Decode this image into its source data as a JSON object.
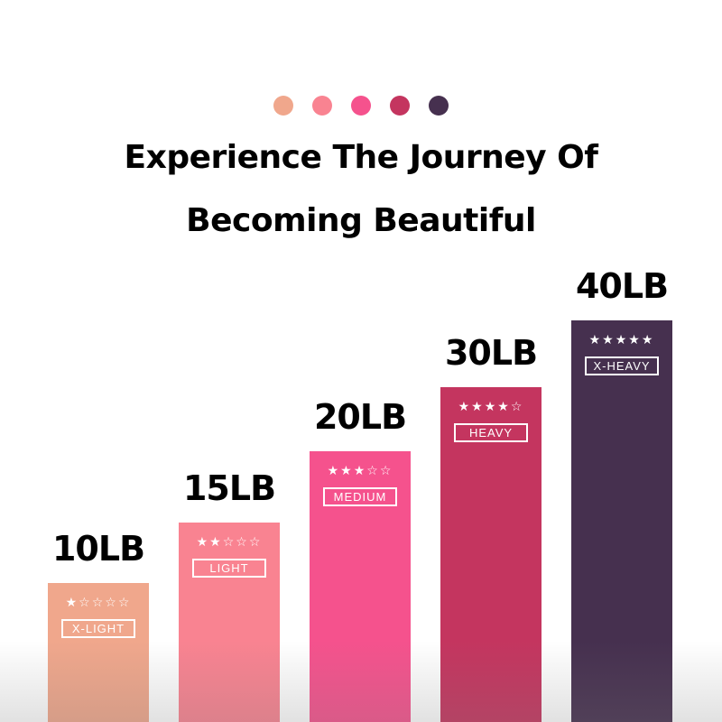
{
  "palette": [
    "#f0a78c",
    "#f98391",
    "#f5528d",
    "#c4355f",
    "#46304f"
  ],
  "title_line1": "Experience The Journey Of",
  "title_line2": "Becoming Beautiful",
  "bands": [
    {
      "weight": "10LB",
      "stars": "★☆☆☆☆",
      "rating": 1,
      "level": "X-LIGHT",
      "color": "#f0a78c"
    },
    {
      "weight": "15LB",
      "stars": "★★☆☆☆",
      "rating": 2,
      "level": "LIGHT",
      "color": "#f98391"
    },
    {
      "weight": "20LB",
      "stars": "★★★☆☆",
      "rating": 3,
      "level": "MEDIUM",
      "color": "#f5528d"
    },
    {
      "weight": "30LB",
      "stars": "★★★★☆",
      "rating": 4,
      "level": "HEAVY",
      "color": "#c4355f"
    },
    {
      "weight": "40LB",
      "stars": "★★★★★",
      "rating": 5,
      "level": "X-HEAVY",
      "color": "#46304f"
    }
  ]
}
